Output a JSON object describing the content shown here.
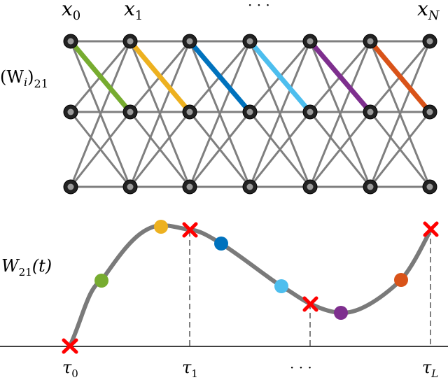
{
  "network": {
    "label_x0": "x",
    "label_x0_sub": "0",
    "label_x1": "x",
    "label_x1_sub": "1",
    "label_dots": "· · ·",
    "label_xN": "x",
    "label_xN_sub": "N",
    "weight_label": "(W",
    "weight_label_sub_i": "i",
    "weight_label_close": ")",
    "weight_label_sub": "21",
    "edge_color": "#7f7f7f",
    "highlight_colors": [
      "#77ac30",
      "#edb120",
      "#0072bd",
      "#4dbeee",
      "#7e2f8e",
      "#d95319"
    ]
  },
  "curve": {
    "ylabel": "W",
    "ylabel_sub": "21",
    "ylabel_arg": "(t)",
    "tau0": "τ",
    "tau0_sub": "0",
    "tau1": "τ",
    "tau1_sub": "1",
    "tau_dots": "· · ·",
    "tauL": "τ",
    "tauL_sub": "L",
    "curve_color": "#7a7a7a",
    "cross_color": "#ff0000"
  }
}
